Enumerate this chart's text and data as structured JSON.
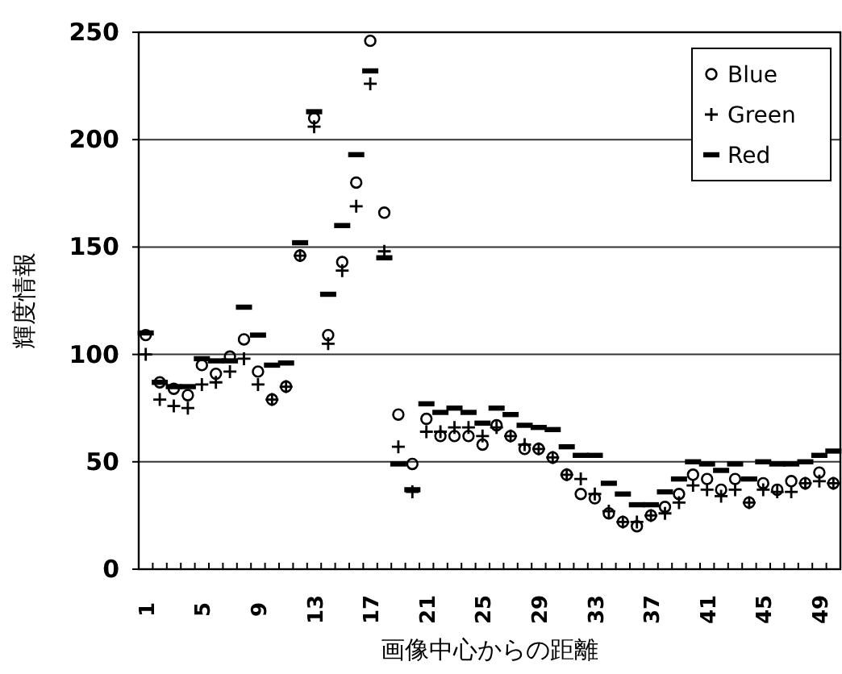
{
  "chart_data": {
    "type": "scatter",
    "xlabel": "画像中心からの距離",
    "ylabel": "輝度情報",
    "categories": [
      "1",
      null,
      null,
      null,
      "5",
      null,
      null,
      null,
      "9",
      null,
      null,
      null,
      "13",
      null,
      null,
      null,
      "17",
      null,
      null,
      null,
      "21",
      null,
      null,
      null,
      "25",
      null,
      null,
      null,
      "29",
      null,
      null,
      null,
      "33",
      null,
      null,
      null,
      "37",
      null,
      null,
      null,
      "41",
      null,
      null,
      null,
      "45",
      null,
      null,
      null,
      "49",
      null
    ],
    "series": [
      {
        "name": "Blue",
        "color": "#000000",
        "marker": "circle",
        "values": [
          109,
          87,
          84,
          81,
          95,
          91,
          99,
          107,
          92,
          79,
          85,
          146,
          210,
          109,
          143,
          180,
          246,
          166,
          72,
          49,
          70,
          62,
          62,
          62,
          58,
          67,
          62,
          56,
          56,
          52,
          44,
          35,
          33,
          26,
          22,
          20,
          25,
          29,
          35,
          44,
          42,
          37,
          42,
          31,
          40,
          37,
          41,
          40,
          45,
          40
        ]
      },
      {
        "name": "Green",
        "color": "#000000",
        "marker": "cross",
        "values": [
          100,
          79,
          76,
          75,
          86,
          87,
          92,
          98,
          86,
          79,
          85,
          146,
          206,
          105,
          139,
          169,
          226,
          148,
          57,
          36,
          64,
          64,
          66,
          66,
          62,
          66,
          62,
          58,
          56,
          52,
          44,
          42,
          35,
          27,
          22,
          22,
          25,
          26,
          31,
          39,
          37,
          34,
          37,
          31,
          37,
          36,
          36,
          40,
          41,
          40
        ]
      },
      {
        "name": "Red",
        "color": "#000000",
        "marker": "square",
        "values": [
          110,
          87,
          85,
          85,
          98,
          97,
          97,
          122,
          109,
          95,
          96,
          152,
          213,
          128,
          160,
          193,
          232,
          145,
          49,
          37,
          77,
          73,
          75,
          73,
          68,
          75,
          72,
          67,
          66,
          65,
          57,
          53,
          53,
          40,
          35,
          30,
          30,
          36,
          42,
          50,
          49,
          46,
          49,
          42,
          50,
          49,
          49,
          50,
          53,
          55
        ]
      }
    ],
    "ylim": [
      0,
      250
    ],
    "yticks": [
      0,
      50,
      100,
      150,
      200,
      250
    ],
    "grid": "y",
    "legend": "top right"
  }
}
